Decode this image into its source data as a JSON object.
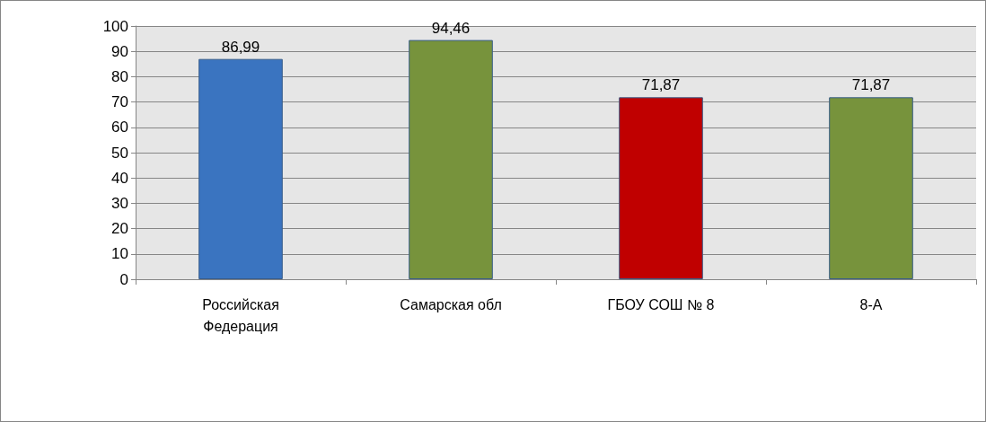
{
  "chart_data": {
    "type": "bar",
    "categories": [
      "Российская Федерация",
      "Самарская обл",
      "ГБОУ СОШ № 8",
      "8-А"
    ],
    "values": [
      86.99,
      94.46,
      71.87,
      71.87
    ],
    "colors": [
      "#3a74c0",
      "#77933c",
      "#c00000",
      "#77933c"
    ],
    "value_labels": [
      "86,99",
      "94,46",
      "71,87",
      "71,87"
    ],
    "ylim": [
      0,
      100
    ],
    "yticks": [
      0,
      10,
      20,
      30,
      40,
      50,
      60,
      70,
      80,
      90,
      100
    ],
    "grid": "y"
  }
}
